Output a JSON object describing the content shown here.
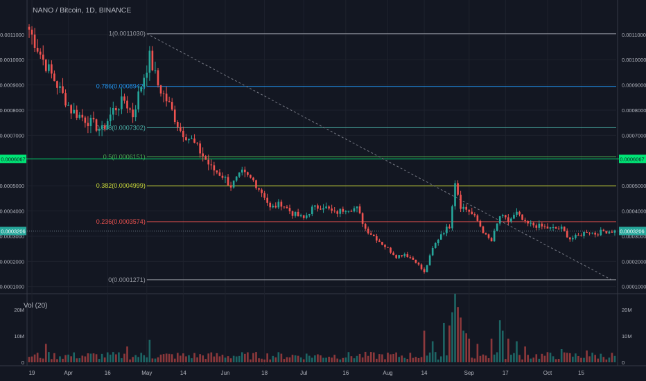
{
  "symbol_title": "NANO / Bitcoin, 1D, BINANCE",
  "volume_label": "Vol (20)",
  "colors": {
    "background": "#131722",
    "up": "#26a69a",
    "down": "#ef5350",
    "grid": "#363a45",
    "text": "#b2b5be"
  },
  "chart_data": {
    "type": "candlestick",
    "pair": "NANO/BTC",
    "interval": "1D",
    "exchange": "BINANCE",
    "price_axis": {
      "ticks": [
        "0.0011000",
        "0.0010000",
        "0.0009000",
        "0.0008000",
        "0.0007000",
        "0.0005000",
        "0.0004000",
        "0.0003000",
        "0.0002000",
        "0.0001000"
      ],
      "range": [
        8e-05,
        0.00116
      ],
      "markers": [
        {
          "label": "0.0006067",
          "value": 0.0006067,
          "color": "#00e676",
          "text_color": "#131722"
        },
        {
          "label": "0.0003206",
          "value": 0.0003206,
          "color": "#26a69a",
          "text_color": "#ffffff"
        }
      ]
    },
    "time_axis": {
      "labels": [
        "19",
        "Apr",
        "16",
        "May",
        "14",
        "Jun",
        "18",
        "Jul",
        "16",
        "Aug",
        "14",
        "Sep",
        "17",
        "Oct",
        "15"
      ],
      "label_index": [
        1,
        14,
        28,
        42,
        55,
        70,
        84,
        98,
        113,
        128,
        141,
        157,
        170,
        185,
        197
      ]
    },
    "fibonacci": [
      {
        "label": "1(0.0011030)",
        "value": 0.001103,
        "color": "#9598a1"
      },
      {
        "label": "0.786(0.0008942)",
        "value": 0.0008942,
        "color": "#2196f3"
      },
      {
        "label": "0.618(0.0007302)",
        "value": 0.0007302,
        "color": "#4db6ac"
      },
      {
        "label": "0.5(0.0006151)",
        "value": 0.0006151,
        "color": "#4caf50"
      },
      {
        "label": "0.382(0.0004999)",
        "value": 0.0004999,
        "color": "#cddc39"
      },
      {
        "label": "0.236(0.0003574)",
        "value": 0.0003574,
        "color": "#ef5350"
      },
      {
        "label": "0(0.0001271)",
        "value": 0.0001271,
        "color": "#9598a1"
      }
    ],
    "horizontal_lines": [
      {
        "value": 0.0006067,
        "color": "#00e676",
        "style": "solid"
      },
      {
        "value": 0.0003206,
        "color": "#758696",
        "style": "dotted"
      }
    ],
    "trendline": {
      "from": [
        42,
        0.001103
      ],
      "to": [
        208,
        0.000126
      ],
      "style": "dashed",
      "color": "#787b86"
    },
    "anchors": [
      {
        "day": 0,
        "price": 0.00112
      },
      {
        "day": 5,
        "price": 0.001
      },
      {
        "day": 10,
        "price": 0.0009
      },
      {
        "day": 15,
        "price": 0.0008
      },
      {
        "day": 22,
        "price": 0.00075
      },
      {
        "day": 26,
        "price": 0.00072
      },
      {
        "day": 30,
        "price": 0.0008
      },
      {
        "day": 34,
        "price": 0.00084
      },
      {
        "day": 37,
        "price": 0.00078
      },
      {
        "day": 40,
        "price": 0.0009
      },
      {
        "day": 43,
        "price": 0.00101
      },
      {
        "day": 46,
        "price": 0.0009
      },
      {
        "day": 50,
        "price": 0.00082
      },
      {
        "day": 54,
        "price": 0.00072
      },
      {
        "day": 58,
        "price": 0.00068
      },
      {
        "day": 62,
        "price": 0.00062
      },
      {
        "day": 65,
        "price": 0.00057
      },
      {
        "day": 69,
        "price": 0.00054
      },
      {
        "day": 72,
        "price": 0.0005
      },
      {
        "day": 76,
        "price": 0.00055
      },
      {
        "day": 80,
        "price": 0.00052
      },
      {
        "day": 84,
        "price": 0.00046
      },
      {
        "day": 86,
        "price": 0.00041
      },
      {
        "day": 90,
        "price": 0.00043
      },
      {
        "day": 94,
        "price": 0.00039
      },
      {
        "day": 98,
        "price": 0.00037
      },
      {
        "day": 101,
        "price": 0.00041
      },
      {
        "day": 105,
        "price": 0.00042
      },
      {
        "day": 109,
        "price": 0.00039
      },
      {
        "day": 113,
        "price": 0.00041
      },
      {
        "day": 117,
        "price": 0.00041
      },
      {
        "day": 120,
        "price": 0.00033
      },
      {
        "day": 124,
        "price": 0.00029
      },
      {
        "day": 128,
        "price": 0.00025
      },
      {
        "day": 131,
        "price": 0.00022
      },
      {
        "day": 134,
        "price": 0.00023
      },
      {
        "day": 138,
        "price": 0.0002
      },
      {
        "day": 141,
        "price": 0.000155
      },
      {
        "day": 144,
        "price": 0.00025
      },
      {
        "day": 147,
        "price": 0.00031
      },
      {
        "day": 150,
        "price": 0.00034
      },
      {
        "day": 152,
        "price": 0.00052
      },
      {
        "day": 154,
        "price": 0.00042
      },
      {
        "day": 157,
        "price": 0.0004
      },
      {
        "day": 160,
        "price": 0.00036
      },
      {
        "day": 163,
        "price": 0.0003
      },
      {
        "day": 165,
        "price": 0.00028
      },
      {
        "day": 168,
        "price": 0.00038
      },
      {
        "day": 171,
        "price": 0.00036
      },
      {
        "day": 174,
        "price": 0.00039
      },
      {
        "day": 177,
        "price": 0.00035
      },
      {
        "day": 182,
        "price": 0.00034
      },
      {
        "day": 186,
        "price": 0.00033
      },
      {
        "day": 190,
        "price": 0.00033
      },
      {
        "day": 193,
        "price": 0.00029
      },
      {
        "day": 196,
        "price": 0.0003
      },
      {
        "day": 199,
        "price": 0.00032
      },
      {
        "day": 202,
        "price": 0.00031
      },
      {
        "day": 205,
        "price": 0.00032
      }
    ],
    "volume": {
      "axis_ticks": [
        "20M",
        "10M",
        "0"
      ],
      "range": [
        0,
        25000000
      ],
      "base_level": 2500000,
      "spikes": [
        {
          "day": 6,
          "value": 7000000
        },
        {
          "day": 35,
          "value": 6000000
        },
        {
          "day": 43,
          "value": 8500000
        },
        {
          "day": 141,
          "value": 12000000
        },
        {
          "day": 144,
          "value": 8000000
        },
        {
          "day": 148,
          "value": 15000000
        },
        {
          "day": 150,
          "value": 14000000
        },
        {
          "day": 151,
          "value": 19000000
        },
        {
          "day": 152,
          "value": 26000000
        },
        {
          "day": 153,
          "value": 21000000
        },
        {
          "day": 154,
          "value": 17000000
        },
        {
          "day": 155,
          "value": 12000000
        },
        {
          "day": 156,
          "value": 11000000
        },
        {
          "day": 157,
          "value": 9000000
        },
        {
          "day": 160,
          "value": 7000000
        },
        {
          "day": 165,
          "value": 9000000
        },
        {
          "day": 168,
          "value": 16000000
        },
        {
          "day": 169,
          "value": 12000000
        },
        {
          "day": 171,
          "value": 9000000
        },
        {
          "day": 174,
          "value": 8000000
        },
        {
          "day": 177,
          "value": 6000000
        },
        {
          "day": 190,
          "value": 5000000
        },
        {
          "day": 199,
          "value": 4500000
        }
      ]
    }
  }
}
